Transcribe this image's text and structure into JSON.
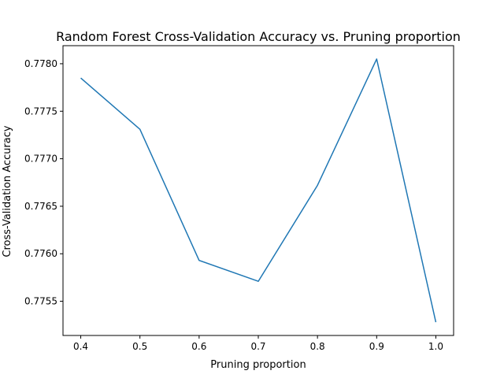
{
  "chart_data": {
    "type": "line",
    "title": "Random Forest Cross-Validation Accuracy vs. Pruning proportion",
    "xlabel": "Pruning proportion",
    "ylabel": "Cross-Validation Accuracy",
    "x": [
      0.4,
      0.5,
      0.6,
      0.7,
      0.8,
      0.9,
      1.0
    ],
    "series": [
      {
        "values": [
          0.77785,
          0.77731,
          0.77593,
          0.77571,
          0.77672,
          0.77805,
          0.77528
        ]
      }
    ],
    "xticks": [
      "0.4",
      "0.5",
      "0.6",
      "0.7",
      "0.8",
      "0.9",
      "1.0"
    ],
    "yticks": [
      "0.7755",
      "0.7760",
      "0.7765",
      "0.7770",
      "0.7775",
      "0.7780"
    ],
    "xlim": [
      0.37,
      1.03
    ],
    "ylim": [
      0.77514,
      0.77819
    ],
    "grid": false,
    "line_color": "#1f77b4"
  }
}
